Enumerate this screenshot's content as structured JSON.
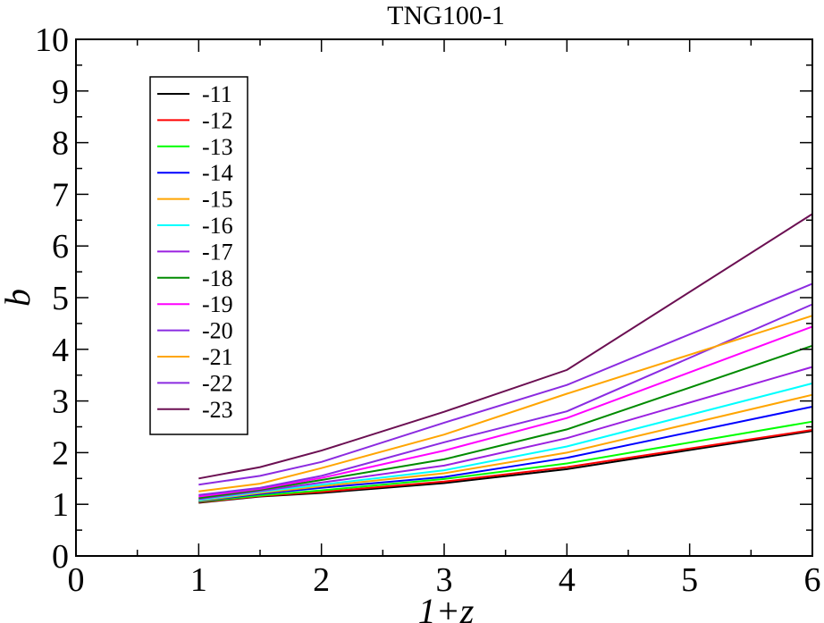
{
  "chart_data": {
    "type": "line",
    "title": "TNG100-1",
    "xlabel": "1+z",
    "ylabel": "b",
    "xlim": [
      0,
      6
    ],
    "ylim": [
      0,
      10
    ],
    "xticks": [
      0,
      1,
      2,
      3,
      4,
      5,
      6
    ],
    "yticks": [
      0,
      1,
      2,
      3,
      4,
      5,
      6,
      7,
      8,
      9,
      10
    ],
    "grid": false,
    "legend_position": "top-left",
    "x": [
      1,
      1.5,
      2,
      3,
      4,
      6
    ],
    "series": [
      {
        "name": "-11",
        "color": "#000000",
        "values": [
          1.03,
          1.15,
          1.22,
          1.41,
          1.68,
          2.42
        ]
      },
      {
        "name": "-12",
        "color": "#ff0000",
        "values": [
          1.04,
          1.16,
          1.24,
          1.44,
          1.72,
          2.44
        ]
      },
      {
        "name": "-13",
        "color": "#00ff00",
        "values": [
          1.05,
          1.17,
          1.27,
          1.49,
          1.79,
          2.6
        ]
      },
      {
        "name": "-14",
        "color": "#0000ff",
        "values": [
          1.06,
          1.2,
          1.32,
          1.53,
          1.9,
          2.89
        ]
      },
      {
        "name": "-15",
        "color": "#ffa500",
        "values": [
          1.07,
          1.22,
          1.35,
          1.6,
          2.0,
          3.12
        ]
      },
      {
        "name": "-16",
        "color": "#00ffff",
        "values": [
          1.08,
          1.24,
          1.38,
          1.66,
          2.12,
          3.34
        ]
      },
      {
        "name": "-17",
        "color": "#9a20e0",
        "values": [
          1.1,
          1.26,
          1.42,
          1.75,
          2.28,
          3.66
        ]
      },
      {
        "name": "-18",
        "color": "#008b00",
        "values": [
          1.12,
          1.28,
          1.47,
          1.87,
          2.45,
          4.07
        ]
      },
      {
        "name": "-19",
        "color": "#ff00ff",
        "values": [
          1.15,
          1.3,
          1.51,
          2.04,
          2.67,
          4.44
        ]
      },
      {
        "name": "-20",
        "color": "#8a2be2",
        "values": [
          1.18,
          1.32,
          1.55,
          2.2,
          2.8,
          4.87
        ]
      },
      {
        "name": "-21",
        "color": "#ffa500",
        "values": [
          1.25,
          1.4,
          1.7,
          2.35,
          3.14,
          4.65
        ]
      },
      {
        "name": "-22",
        "color": "#8b2be0",
        "values": [
          1.38,
          1.55,
          1.82,
          2.58,
          3.31,
          5.27
        ]
      },
      {
        "name": "-23",
        "color": "#6b0f52",
        "values": [
          1.5,
          1.72,
          2.04,
          2.79,
          3.6,
          6.62
        ]
      }
    ]
  }
}
